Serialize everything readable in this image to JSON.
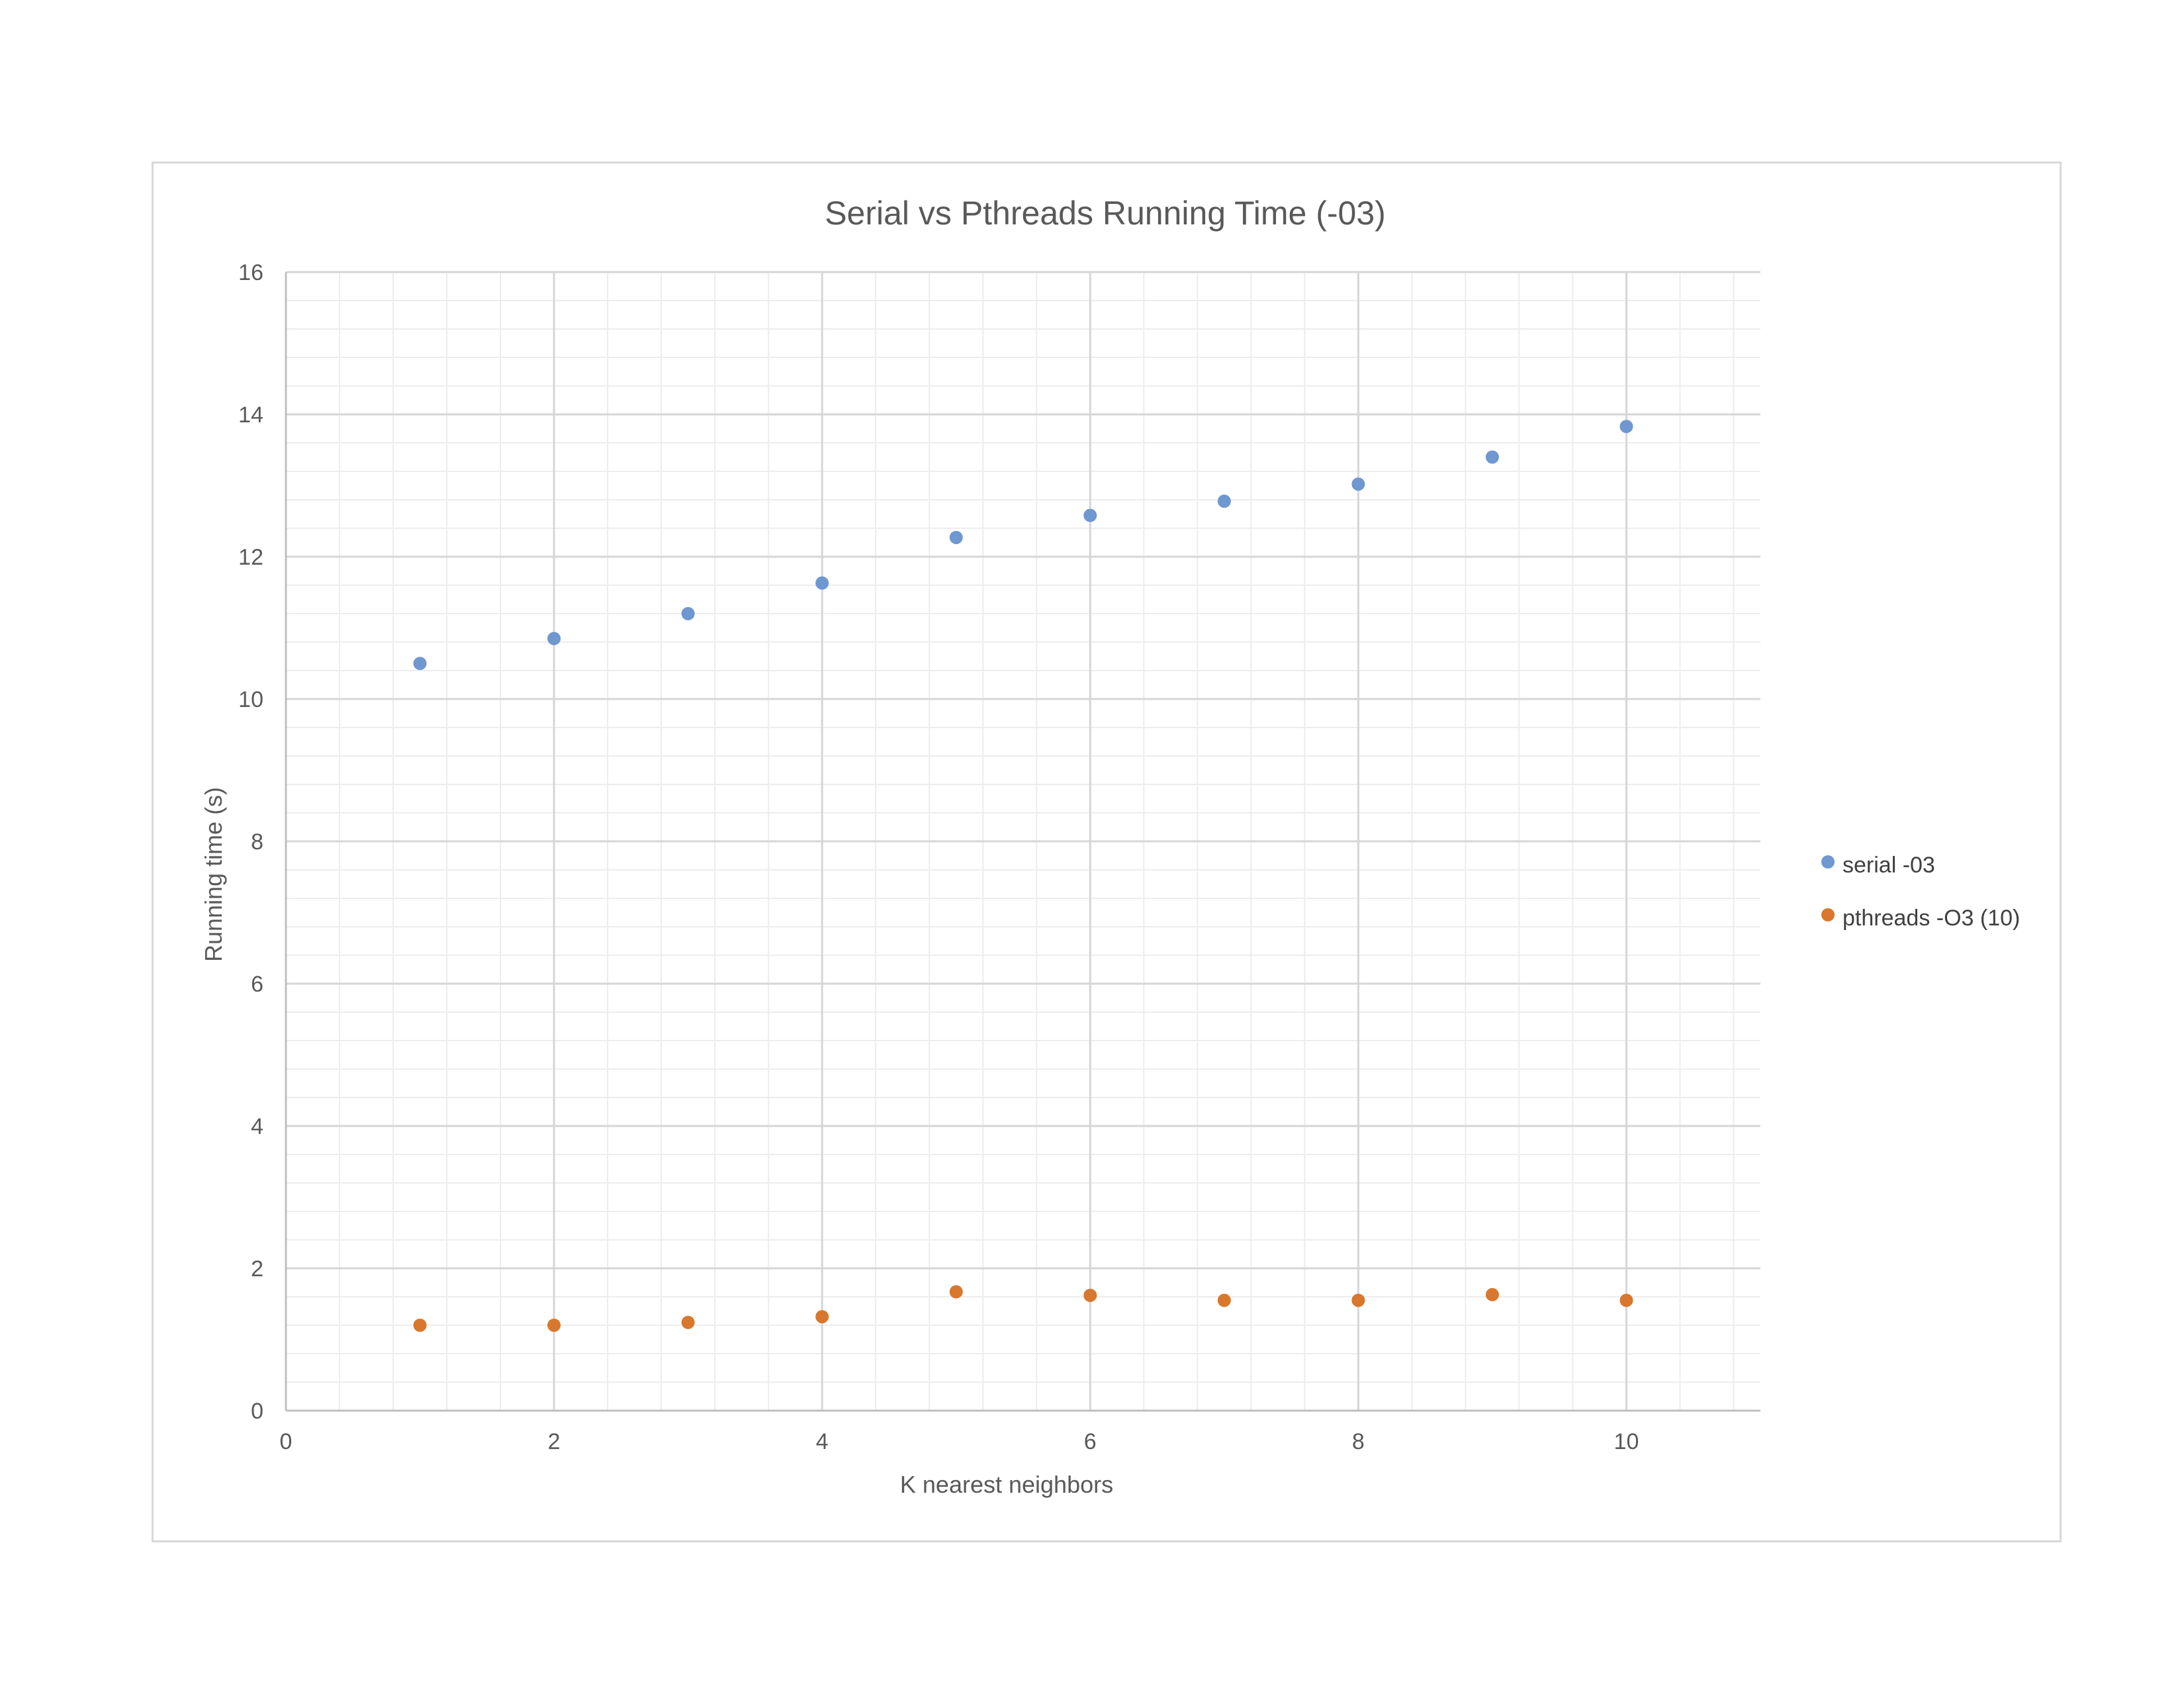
{
  "chart_data": {
    "type": "scatter",
    "title": "Serial vs Pthreads Running Time (-03)",
    "xlabel": "K nearest neighbors",
    "ylabel": "Running time (s)",
    "xlim": [
      0,
      11
    ],
    "ylim": [
      0,
      16
    ],
    "x_ticks": [
      0,
      2,
      4,
      6,
      8,
      10
    ],
    "y_ticks": [
      0,
      2,
      4,
      6,
      8,
      10,
      12,
      14,
      16
    ],
    "grid": true,
    "legend_position": "right",
    "series": [
      {
        "name": "serial -03",
        "color": "#6f97d0",
        "x": [
          1,
          2,
          3,
          4,
          5,
          6,
          7,
          8,
          9,
          10
        ],
        "y": [
          10.5,
          10.85,
          11.2,
          11.63,
          12.27,
          12.58,
          12.78,
          13.02,
          13.4,
          13.83
        ]
      },
      {
        "name": "pthreads -O3 (10)",
        "color": "#d9772e",
        "x": [
          1,
          2,
          3,
          4,
          5,
          6,
          7,
          8,
          9,
          10
        ],
        "y": [
          1.2,
          1.2,
          1.24,
          1.32,
          1.67,
          1.62,
          1.55,
          1.55,
          1.63,
          1.55
        ]
      }
    ]
  }
}
